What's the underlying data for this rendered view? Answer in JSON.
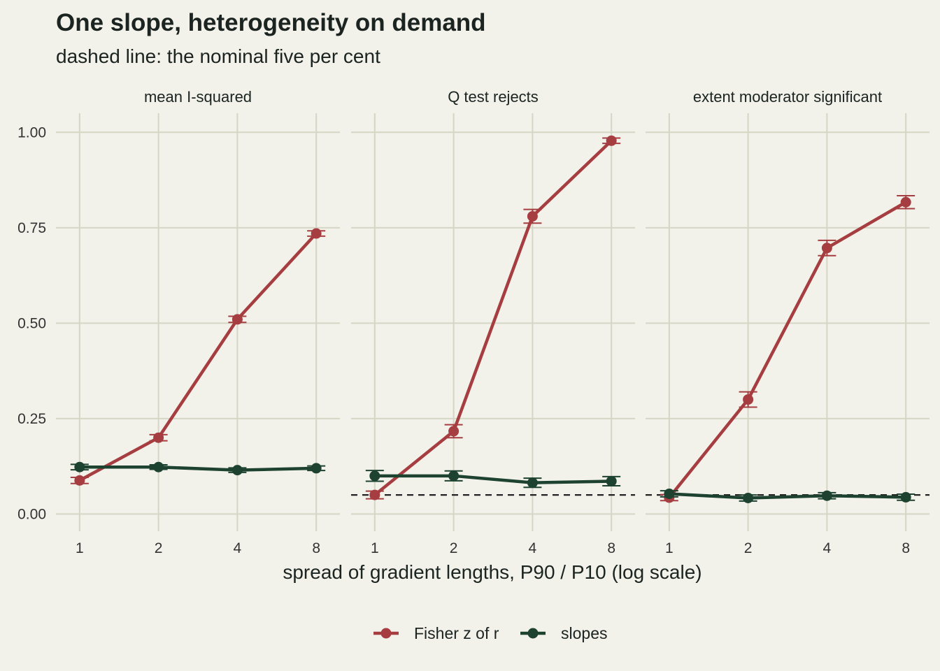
{
  "chart_data": {
    "type": "line",
    "title": "One slope, heterogeneity on demand",
    "subtitle": "dashed line: the nominal five per cent",
    "xlabel": "spread of gradient lengths, P90 / P10 (log scale)",
    "ylabel": "",
    "x": [
      1,
      2,
      4,
      8
    ],
    "x_scale": "log",
    "ylim": [
      -0.045,
      1.05
    ],
    "yticks": [
      0.0,
      0.25,
      0.5,
      0.75,
      1.0
    ],
    "ytick_labels": [
      "0.00",
      "0.25",
      "0.50",
      "0.75",
      "1.00"
    ],
    "xtick_labels": [
      "1",
      "2",
      "4",
      "8"
    ],
    "reference_line": 0.05,
    "legend_position": "bottom",
    "grid": true,
    "series_colors": {
      "Fisher z of r": "#a63d40",
      "slopes": "#1e4230"
    },
    "legend": [
      {
        "name": "Fisher z of r",
        "color": "#a63d40"
      },
      {
        "name": "slopes",
        "color": "#1e4230"
      }
    ],
    "panels": [
      {
        "title": "mean I-squared",
        "show_reference": false,
        "series": [
          {
            "name": "Fisher z of r",
            "values": [
              0.088,
              0.2,
              0.51,
              0.735
            ],
            "lower": [
              0.08,
              0.192,
              0.502,
              0.728
            ],
            "upper": [
              0.096,
              0.208,
              0.518,
              0.742
            ]
          },
          {
            "name": "slopes",
            "values": [
              0.123,
              0.123,
              0.115,
              0.12
            ],
            "lower": [
              0.116,
              0.117,
              0.109,
              0.114
            ],
            "upper": [
              0.13,
              0.129,
              0.121,
              0.126
            ]
          }
        ]
      },
      {
        "title": "Q test rejects",
        "show_reference": true,
        "series": [
          {
            "name": "Fisher z of r",
            "values": [
              0.05,
              0.217,
              0.78,
              0.978
            ],
            "lower": [
              0.04,
              0.2,
              0.762,
              0.971
            ],
            "upper": [
              0.06,
              0.234,
              0.798,
              0.985
            ]
          },
          {
            "name": "slopes",
            "values": [
              0.1,
              0.1,
              0.082,
              0.086
            ],
            "lower": [
              0.086,
              0.087,
              0.07,
              0.074
            ],
            "upper": [
              0.114,
              0.113,
              0.094,
              0.098
            ]
          }
        ]
      },
      {
        "title": "extent moderator significant",
        "show_reference": true,
        "series": [
          {
            "name": "Fisher z of r",
            "values": [
              0.043,
              0.3,
              0.697,
              0.817
            ],
            "lower": [
              0.035,
              0.28,
              0.677,
              0.8
            ],
            "upper": [
              0.051,
              0.32,
              0.717,
              0.834
            ]
          },
          {
            "name": "slopes",
            "values": [
              0.053,
              0.042,
              0.048,
              0.044
            ],
            "lower": [
              0.045,
              0.034,
              0.04,
              0.036
            ],
            "upper": [
              0.061,
              0.05,
              0.056,
              0.052
            ]
          }
        ]
      }
    ]
  }
}
